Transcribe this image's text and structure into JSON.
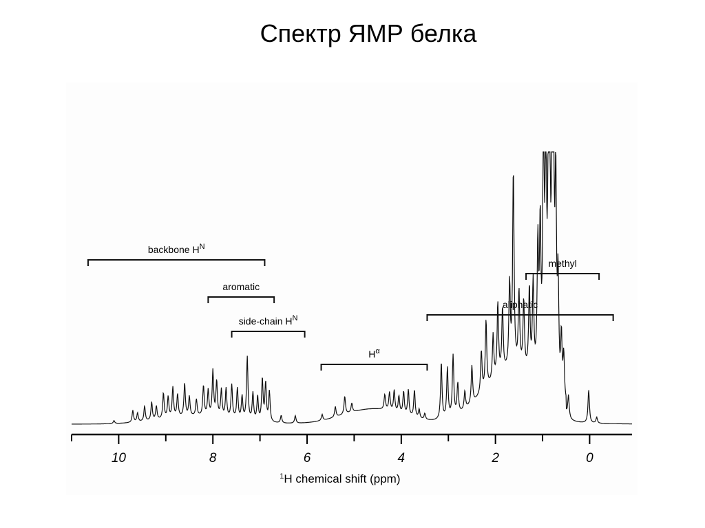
{
  "slide": {
    "title": "Спектр ЯМР белка"
  },
  "chart_data": {
    "type": "line",
    "title": "",
    "xlabel_prefix": "1",
    "xlabel": "H chemical shift (ppm)",
    "ylabel": "",
    "x_reversed": true,
    "xlim": [
      11,
      -0.9
    ],
    "ticks": [
      10,
      8,
      6,
      4,
      2,
      0
    ],
    "tick_labels": [
      "10",
      "8",
      "6",
      "4",
      "2",
      "0"
    ],
    "grid": false,
    "regions": [
      {
        "name": "backbone",
        "label": "backbone H",
        "sup": "N",
        "from": 10.65,
        "to": 6.9,
        "level": 0
      },
      {
        "name": "aromatic",
        "label": "aromatic",
        "sup": "",
        "from": 8.1,
        "to": 6.7,
        "level": 1
      },
      {
        "name": "side-chain",
        "label": "side-chain H",
        "sup": "N",
        "from": 7.6,
        "to": 6.05,
        "level": 2
      },
      {
        "name": "h-alpha",
        "label": "H",
        "sup": "α",
        "from": 5.7,
        "to": 3.45,
        "level": 3
      },
      {
        "name": "aliphatic",
        "label": "aliphatic",
        "sup": "",
        "from": 3.45,
        "to": -0.5,
        "level": 2
      },
      {
        "name": "methyl",
        "label": "methyl",
        "sup": "",
        "from": 1.35,
        "to": -0.2,
        "level": 1
      }
    ],
    "peaks": [
      {
        "x": 10.1,
        "y": 0.02
      },
      {
        "x": 9.7,
        "y": 0.08
      },
      {
        "x": 9.6,
        "y": 0.06
      },
      {
        "x": 9.45,
        "y": 0.1
      },
      {
        "x": 9.3,
        "y": 0.12
      },
      {
        "x": 9.2,
        "y": 0.09
      },
      {
        "x": 9.05,
        "y": 0.17
      },
      {
        "x": 8.95,
        "y": 0.14
      },
      {
        "x": 8.85,
        "y": 0.2
      },
      {
        "x": 8.75,
        "y": 0.15
      },
      {
        "x": 8.6,
        "y": 0.22
      },
      {
        "x": 8.5,
        "y": 0.13
      },
      {
        "x": 8.35,
        "y": 0.11
      },
      {
        "x": 8.2,
        "y": 0.2
      },
      {
        "x": 8.1,
        "y": 0.17
      },
      {
        "x": 8.0,
        "y": 0.3
      },
      {
        "x": 7.92,
        "y": 0.23
      },
      {
        "x": 7.82,
        "y": 0.18
      },
      {
        "x": 7.72,
        "y": 0.19
      },
      {
        "x": 7.6,
        "y": 0.22
      },
      {
        "x": 7.48,
        "y": 0.2
      },
      {
        "x": 7.38,
        "y": 0.15
      },
      {
        "x": 7.27,
        "y": 0.42
      },
      {
        "x": 7.15,
        "y": 0.18
      },
      {
        "x": 7.05,
        "y": 0.16
      },
      {
        "x": 6.95,
        "y": 0.28
      },
      {
        "x": 6.88,
        "y": 0.25
      },
      {
        "x": 6.8,
        "y": 0.2
      },
      {
        "x": 6.55,
        "y": 0.05
      },
      {
        "x": 6.25,
        "y": 0.05
      },
      {
        "x": 5.68,
        "y": 0.04
      },
      {
        "x": 5.4,
        "y": 0.07
      },
      {
        "x": 5.2,
        "y": 0.12
      },
      {
        "x": 5.05,
        "y": 0.06
      },
      {
        "x": 4.35,
        "y": 0.1
      },
      {
        "x": 4.25,
        "y": 0.12
      },
      {
        "x": 4.15,
        "y": 0.14
      },
      {
        "x": 4.05,
        "y": 0.11
      },
      {
        "x": 3.95,
        "y": 0.15
      },
      {
        "x": 3.85,
        "y": 0.17
      },
      {
        "x": 3.72,
        "y": 0.18
      },
      {
        "x": 3.62,
        "y": 0.06
      },
      {
        "x": 3.5,
        "y": 0.04
      },
      {
        "x": 3.15,
        "y": 0.38
      },
      {
        "x": 3.02,
        "y": 0.33
      },
      {
        "x": 2.9,
        "y": 0.4
      },
      {
        "x": 2.8,
        "y": 0.2
      },
      {
        "x": 2.65,
        "y": 0.12
      },
      {
        "x": 2.5,
        "y": 0.25
      },
      {
        "x": 2.3,
        "y": 0.28
      },
      {
        "x": 2.2,
        "y": 0.45
      },
      {
        "x": 2.05,
        "y": 0.3
      },
      {
        "x": 1.95,
        "y": 0.48
      },
      {
        "x": 1.85,
        "y": 0.42
      },
      {
        "x": 1.7,
        "y": 0.55
      },
      {
        "x": 1.62,
        "y": 1.3
      },
      {
        "x": 1.5,
        "y": 0.5
      },
      {
        "x": 1.4,
        "y": 0.45
      },
      {
        "x": 1.28,
        "y": 0.55
      },
      {
        "x": 1.2,
        "y": 0.6
      },
      {
        "x": 1.1,
        "y": 0.85
      },
      {
        "x": 1.05,
        "y": 0.95
      },
      {
        "x": 0.98,
        "y": 1.65
      },
      {
        "x": 0.93,
        "y": 1.45
      },
      {
        "x": 0.88,
        "y": 0.95
      },
      {
        "x": 0.85,
        "y": 1.55
      },
      {
        "x": 0.8,
        "y": 1.1
      },
      {
        "x": 0.77,
        "y": 1.75
      },
      {
        "x": 0.72,
        "y": 1.35
      },
      {
        "x": 0.67,
        "y": 0.7
      },
      {
        "x": 0.6,
        "y": 0.4
      },
      {
        "x": 0.55,
        "y": 0.3
      },
      {
        "x": 0.45,
        "y": 0.15
      },
      {
        "x": 0.02,
        "y": 0.22
      },
      {
        "x": -0.15,
        "y": 0.04
      }
    ]
  }
}
